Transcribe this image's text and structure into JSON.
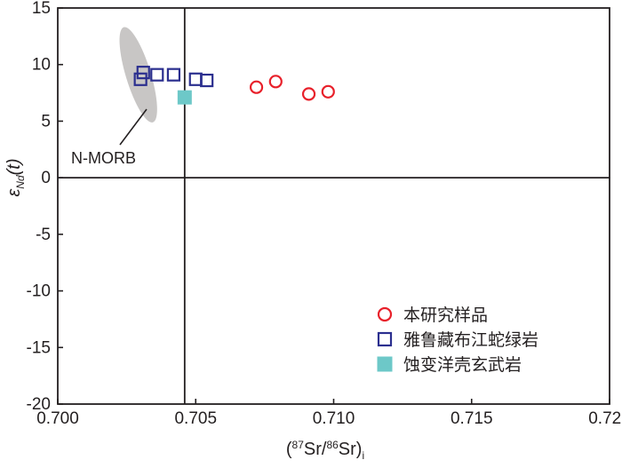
{
  "chart_data": {
    "type": "scatter",
    "x_axis": {
      "label_prefix": "(",
      "label_sup1": "87",
      "label_mid": "Sr/",
      "label_sup2": "86",
      "label_end": "Sr)",
      "label_sub": "i",
      "range": [
        0.7,
        0.72
      ],
      "ticks": [
        "0.700",
        "0.705",
        "0.710",
        "0.715",
        "0.720"
      ],
      "tick_values": [
        0.7,
        0.705,
        0.71,
        0.715,
        0.72
      ]
    },
    "y_axis": {
      "label_main": "ε",
      "label_sub": "Nd",
      "label_tail": "(t)",
      "range": [
        -20,
        15
      ],
      "ticks": [
        "15",
        "10",
        "5",
        "0",
        "-5",
        "-10",
        "-15",
        "-20"
      ],
      "tick_values": [
        15,
        10,
        5,
        0,
        -5,
        -10,
        -15,
        -20
      ]
    },
    "reference_lines": {
      "x": 0.7046,
      "y": 0
    },
    "region": {
      "label": "N-MORB",
      "center": [
        0.70292,
        9.1
      ],
      "color": "#c8c6c5"
    },
    "series": [
      {
        "name": "本研究样品",
        "marker": "circle-open",
        "color": "#e8202a",
        "points": [
          [
            0.7072,
            8.0
          ],
          [
            0.7079,
            8.5
          ],
          [
            0.7091,
            7.4
          ],
          [
            0.7098,
            7.6
          ]
        ]
      },
      {
        "name": "雅鲁藏布江蛇绿岩",
        "marker": "square-open",
        "color": "#2b2f8f",
        "points": [
          [
            0.703,
            8.7
          ],
          [
            0.7031,
            9.3
          ],
          [
            0.7036,
            9.1
          ],
          [
            0.7042,
            9.1
          ],
          [
            0.705,
            8.7
          ],
          [
            0.7054,
            8.6
          ]
        ]
      },
      {
        "name": "蚀变洋壳玄武岩",
        "marker": "square-filled",
        "color": "#6dc8c8",
        "points": [
          [
            0.7046,
            7.1
          ]
        ]
      }
    ]
  }
}
